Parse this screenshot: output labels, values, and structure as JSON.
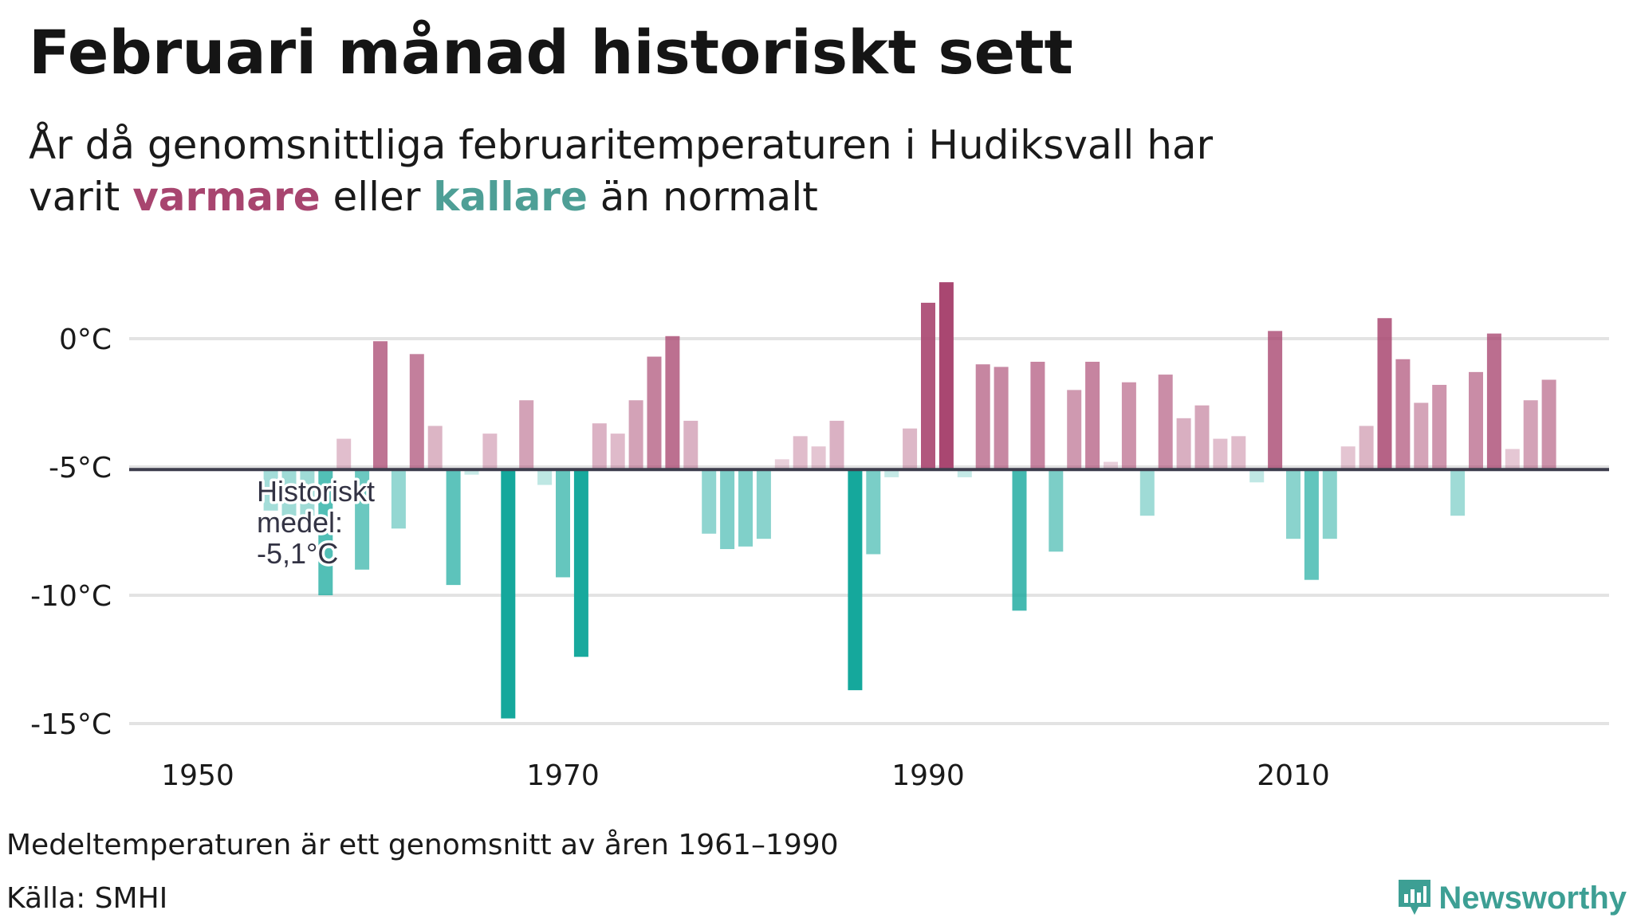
{
  "title": "Februari månad historiskt sett",
  "subtitle": {
    "line1": "År då genomsnittliga februaritemperaturen i Hudiksvall har",
    "prefix": "varit",
    "warm_word": "varmare",
    "middle": "eller",
    "cold_word": "kallare",
    "suffix": "än normalt"
  },
  "colors": {
    "warm": "#a8456f",
    "cold": "#15a89c",
    "baseline": "#3d3d4d",
    "grid": "#e3e3e3",
    "brand": "#3d9f94"
  },
  "footer": {
    "note": "Medeltemperaturen är ett genomsnitt av åren 1961–1990",
    "source": "Källa: SMHI",
    "brand": "Newsworthy"
  },
  "chart_data": {
    "type": "bar",
    "baseline": -5.1,
    "baseline_label": [
      "Historiskt",
      "medel:",
      "-5,1°C"
    ],
    "ylim": [
      -15.5,
      2.5
    ],
    "yticks": [
      0,
      -5,
      -10,
      -15
    ],
    "ytick_labels": [
      "0°C",
      "-5°C",
      "-10°C",
      "-15°C"
    ],
    "xticks": [
      1950,
      1970,
      1990,
      2010
    ],
    "xtick_labels": [
      "1950",
      "1970",
      "1990",
      "2010"
    ],
    "grid": true,
    "x": [
      1954,
      1955,
      1956,
      1957,
      1958,
      1959,
      1960,
      1961,
      1962,
      1963,
      1964,
      1965,
      1966,
      1967,
      1968,
      1969,
      1970,
      1971,
      1972,
      1973,
      1974,
      1975,
      1976,
      1977,
      1978,
      1979,
      1980,
      1981,
      1982,
      1983,
      1984,
      1985,
      1986,
      1987,
      1988,
      1989,
      1990,
      1991,
      1992,
      1993,
      1994,
      1995,
      1996,
      1997,
      1998,
      1999,
      2000,
      2001,
      2002,
      2003,
      2004,
      2005,
      2006,
      2007,
      2008,
      2009,
      2010,
      2011,
      2012,
      2013,
      2014,
      2015,
      2016,
      2017,
      2018,
      2019,
      2020,
      2021,
      2022,
      2023,
      2024
    ],
    "values": [
      -6.7,
      -6.9,
      -6.9,
      -10.0,
      -3.9,
      -9.0,
      -0.1,
      -7.4,
      -0.6,
      -3.4,
      -9.6,
      -5.3,
      -3.7,
      -14.8,
      -2.4,
      -5.7,
      -9.3,
      -12.4,
      -3.3,
      -3.7,
      -2.4,
      -0.7,
      0.1,
      -3.2,
      -7.6,
      -8.2,
      -8.1,
      -7.8,
      -4.7,
      -3.8,
      -4.2,
      -3.2,
      -13.7,
      -8.4,
      -5.4,
      -3.5,
      1.4,
      2.2,
      -5.4,
      -1.0,
      -1.1,
      -10.6,
      -0.9,
      -8.3,
      -2.0,
      -0.9,
      -4.8,
      -1.7,
      -6.9,
      -1.4,
      -3.1,
      -2.6,
      -3.9,
      -3.8,
      -5.6,
      0.3,
      -7.8,
      -9.4,
      -7.8,
      -4.2,
      -3.4,
      0.8,
      -0.8,
      -2.5,
      -1.8,
      -6.9,
      -1.3,
      0.2,
      -4.3,
      -2.4,
      -1.6
    ]
  }
}
